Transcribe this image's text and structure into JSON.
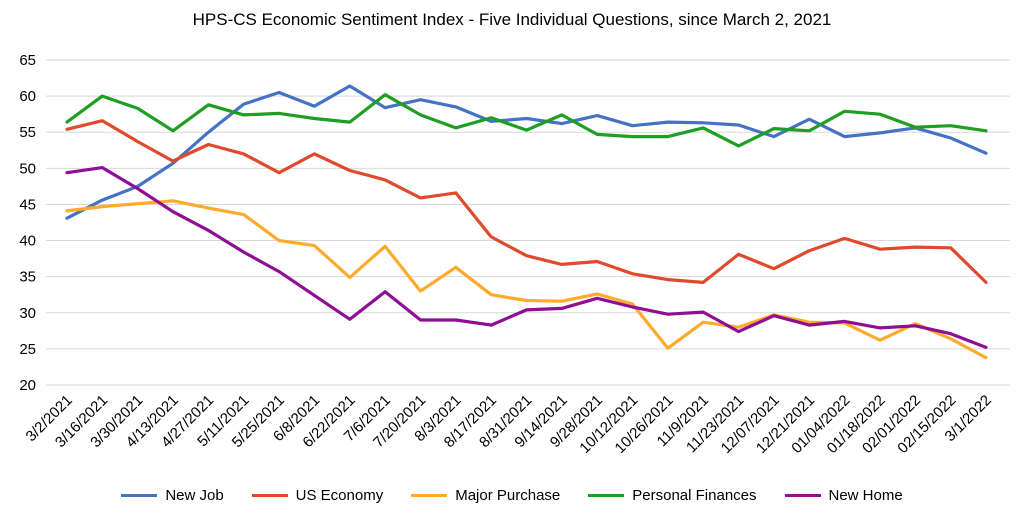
{
  "chart_data": {
    "type": "line",
    "title": "HPS-CS Economic Sentiment Index - Five Individual Questions, since March 2, 2021",
    "xlabel": "",
    "ylabel": "",
    "ylim": [
      20,
      65
    ],
    "yticks": [
      20,
      25,
      30,
      35,
      40,
      45,
      50,
      55,
      60,
      65
    ],
    "grid": true,
    "legend_position": "bottom",
    "categories": [
      "3/2/2021",
      "3/16/2021",
      "3/30/2021",
      "4/13/2021",
      "4/27/2021",
      "5/11/2021",
      "5/25/2021",
      "6/8/2021",
      "6/22/2021",
      "7/6/2021",
      "7/20/2021",
      "8/3/2021",
      "8/17/2021",
      "8/31/2021",
      "9/14/2021",
      "9/28/2021",
      "10/12/2021",
      "10/26/2021",
      "11/9/2021",
      "11/23/2021",
      "12/07/2021",
      "12/21/2021",
      "01/04/2022",
      "01/18/2022",
      "02/01/2022",
      "02/15/2022",
      "3/1/2022"
    ],
    "series": [
      {
        "name": "New Job",
        "color": "#4472C4",
        "values": [
          43.1,
          45.6,
          47.5,
          50.7,
          55.0,
          58.9,
          60.5,
          58.6,
          61.4,
          58.4,
          59.5,
          58.5,
          56.5,
          56.9,
          56.2,
          57.3,
          55.9,
          56.4,
          56.3,
          56.0,
          54.4,
          56.8,
          54.4,
          54.9,
          55.6,
          54.2,
          52.1
        ]
      },
      {
        "name": "US Economy",
        "color": "#E0492B",
        "values": [
          55.4,
          56.6,
          53.7,
          51.0,
          53.3,
          52.0,
          49.4,
          52.0,
          49.7,
          48.4,
          45.9,
          46.6,
          40.5,
          37.9,
          36.7,
          37.1,
          35.4,
          34.6,
          34.2,
          38.1,
          36.1,
          38.6,
          40.3,
          38.8,
          39.1,
          39.0,
          34.2
        ]
      },
      {
        "name": "Major Purchase",
        "color": "#FFAA2B",
        "values": [
          44.1,
          44.7,
          45.1,
          45.5,
          44.5,
          43.6,
          40.0,
          39.3,
          34.9,
          39.2,
          33.0,
          36.3,
          32.5,
          31.7,
          31.6,
          32.6,
          31.2,
          25.1,
          28.7,
          28.0,
          29.7,
          28.7,
          28.6,
          26.2,
          28.5,
          26.4,
          23.8
        ]
      },
      {
        "name": "Personal Finances",
        "color": "#1E9E22",
        "values": [
          56.4,
          60.0,
          58.3,
          55.2,
          58.8,
          57.4,
          57.6,
          56.9,
          56.4,
          60.2,
          57.4,
          55.6,
          57.0,
          55.3,
          57.4,
          54.7,
          54.4,
          54.4,
          55.6,
          53.1,
          55.5,
          55.2,
          57.9,
          57.5,
          55.7,
          55.9,
          55.2
        ]
      },
      {
        "name": "New Home",
        "color": "#8E0E95",
        "values": [
          49.4,
          50.1,
          47.2,
          44.0,
          41.4,
          38.4,
          35.7,
          32.4,
          29.1,
          32.9,
          29.0,
          29.0,
          28.3,
          30.4,
          30.6,
          32.0,
          30.8,
          29.8,
          30.1,
          27.4,
          29.6,
          28.3,
          28.8,
          27.9,
          28.2,
          27.1,
          25.2
        ]
      }
    ]
  }
}
